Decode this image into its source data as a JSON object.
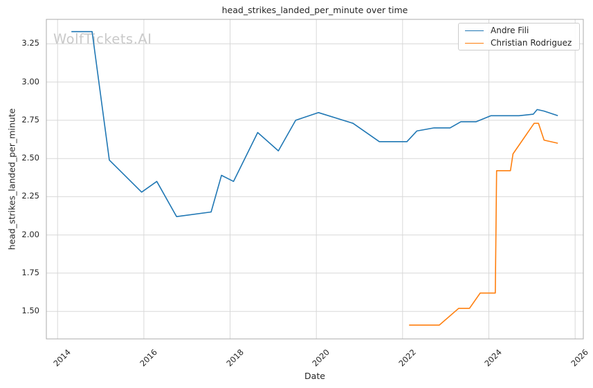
{
  "page_title": "head_strikes_landed_per_minute over time",
  "watermark": "WolfTickets.AI",
  "colors": {
    "series_blue": "#1f77b4",
    "series_orange": "#ff7f0e",
    "grid": "#d8d8d8",
    "spine": "#ababab",
    "text": "#262626",
    "watermark": "#c9c9c9",
    "legend_border": "#cccccc",
    "background": "#ffffff"
  },
  "chart_data": {
    "type": "line",
    "title": "head_strikes_landed_per_minute over time",
    "xlabel": "Date",
    "ylabel": "head_strikes_landed_per_minute",
    "x_unit": "decimal_year",
    "grid": true,
    "legend_position": "upper right",
    "xlim": [
      2013.74,
      2026.19
    ],
    "ylim": [
      1.32,
      3.41
    ],
    "xticks": [
      2014,
      2016,
      2018,
      2020,
      2022,
      2024,
      2026
    ],
    "yticks": [
      1.5,
      1.75,
      2.0,
      2.25,
      2.5,
      2.75,
      3.0,
      3.25
    ],
    "series": [
      {
        "name": "Andre Fili",
        "color": "#1f77b4",
        "x": [
          2014.32,
          2014.8,
          2015.2,
          2015.95,
          2016.3,
          2016.76,
          2017.56,
          2017.8,
          2018.08,
          2018.64,
          2019.12,
          2019.52,
          2020.05,
          2020.85,
          2021.46,
          2022.1,
          2022.33,
          2022.73,
          2023.1,
          2023.35,
          2023.7,
          2024.05,
          2024.7,
          2025.03,
          2025.12,
          2025.28,
          2025.6
        ],
        "values": [
          3.33,
          3.33,
          2.49,
          2.28,
          2.35,
          2.12,
          2.15,
          2.39,
          2.35,
          2.67,
          2.55,
          2.75,
          2.8,
          2.73,
          2.61,
          2.61,
          2.68,
          2.7,
          2.7,
          2.74,
          2.74,
          2.78,
          2.78,
          2.79,
          2.82,
          2.81,
          2.78
        ]
      },
      {
        "name": "Christian Rodriguez",
        "color": "#ff7f0e",
        "x": [
          2022.15,
          2022.85,
          2023.3,
          2023.55,
          2023.8,
          2024.15,
          2024.18,
          2024.5,
          2024.56,
          2025.05,
          2025.15,
          2025.28,
          2025.6
        ],
        "values": [
          1.41,
          1.41,
          1.52,
          1.52,
          1.62,
          1.62,
          2.42,
          2.42,
          2.53,
          2.73,
          2.73,
          2.62,
          2.6
        ]
      }
    ]
  }
}
